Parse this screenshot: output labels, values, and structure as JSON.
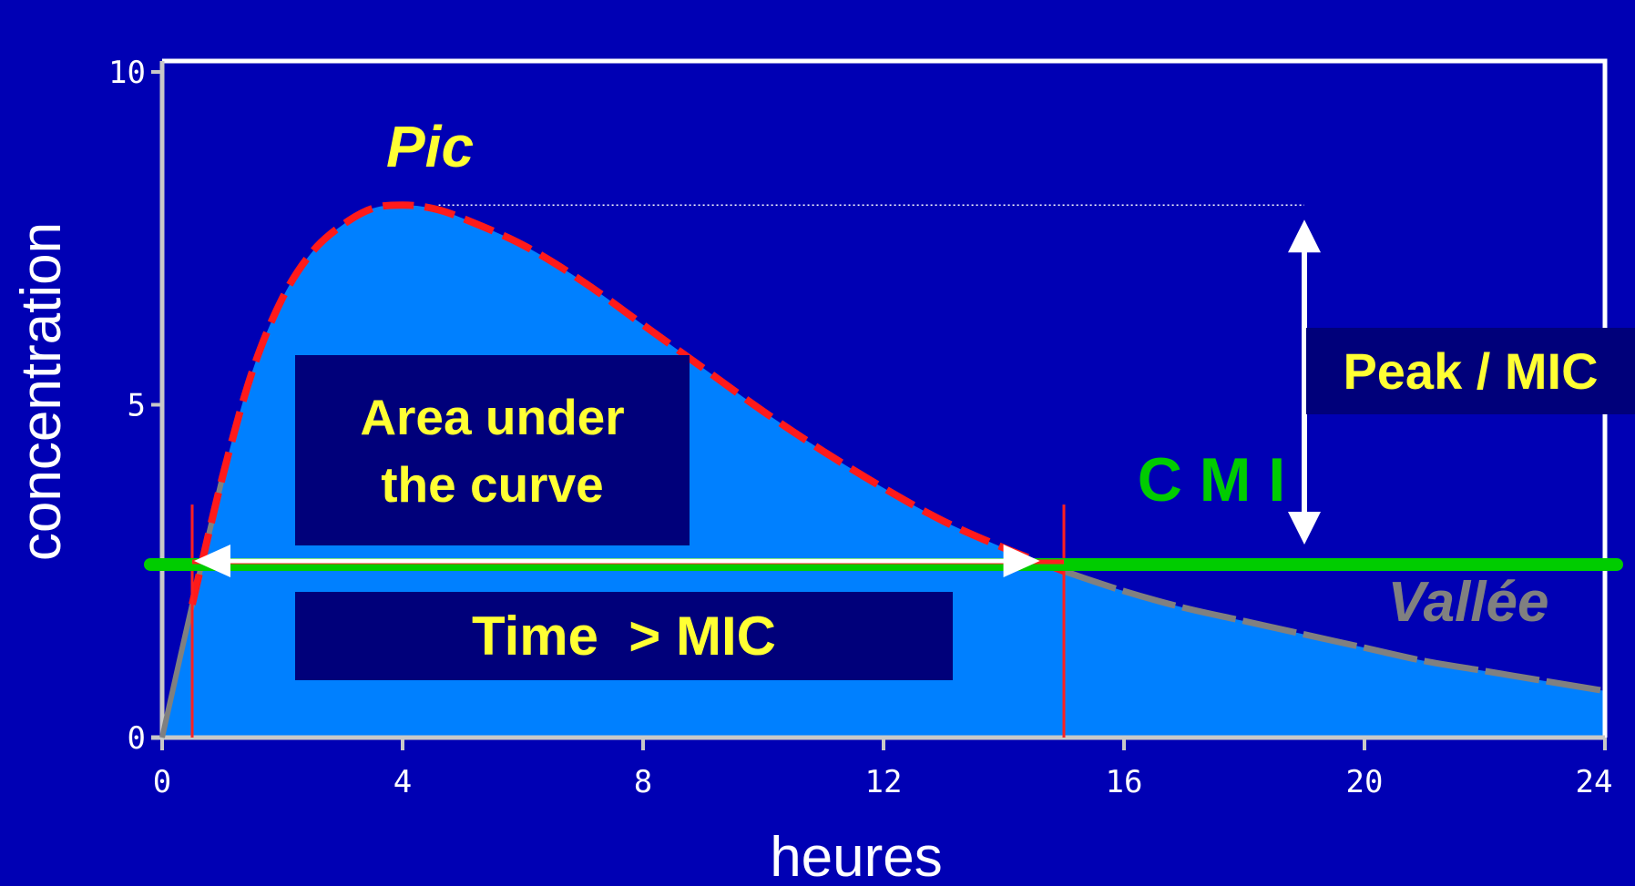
{
  "chart_data": {
    "type": "area",
    "xlabel": "heures",
    "ylabel": "concentration",
    "xlim": [
      0,
      24
    ],
    "ylim": [
      0,
      10
    ],
    "x_ticks": [
      "0",
      "4",
      "8",
      "12",
      "16",
      "20",
      "24"
    ],
    "y_ticks": [
      "0",
      "5",
      "10"
    ],
    "grid": false,
    "curve": {
      "x": [
        0,
        0.5,
        1,
        1.5,
        2,
        2.5,
        3,
        3.5,
        4,
        4.5,
        5,
        6,
        7,
        8,
        9,
        10,
        11,
        12,
        13,
        14,
        15,
        16,
        17,
        18,
        19,
        20,
        21,
        22,
        23,
        24
      ],
      "y": [
        0,
        2.0,
        3.9,
        5.5,
        6.6,
        7.3,
        7.7,
        7.95,
        8.0,
        7.95,
        7.8,
        7.4,
        6.85,
        6.2,
        5.55,
        4.9,
        4.3,
        3.75,
        3.25,
        2.85,
        2.5,
        2.2,
        1.95,
        1.75,
        1.55,
        1.35,
        1.15,
        1.0,
        0.85,
        0.7
      ]
    },
    "mic": 2.6,
    "peak": 8.0,
    "time_above_mic": [
      0.5,
      15
    ],
    "annotations": {
      "peak": "Pic",
      "trough": "Vallée",
      "mic": "C M I",
      "auc": [
        "Area under",
        "the curve"
      ],
      "time_above": "Time  > MIC",
      "peak_ratio": "Peak / MIC"
    },
    "colors": {
      "background": "#0000b4",
      "area": "#0080ff",
      "curve_dashed": "#ff1a1a",
      "trough_curve": "#808080",
      "mic_line": "#00cc00",
      "label_box": "#00007a",
      "label_text": "#ffff33",
      "axis": "#c8c8c8",
      "frame": "#ffffff",
      "marker_line": "#ff2020"
    }
  }
}
